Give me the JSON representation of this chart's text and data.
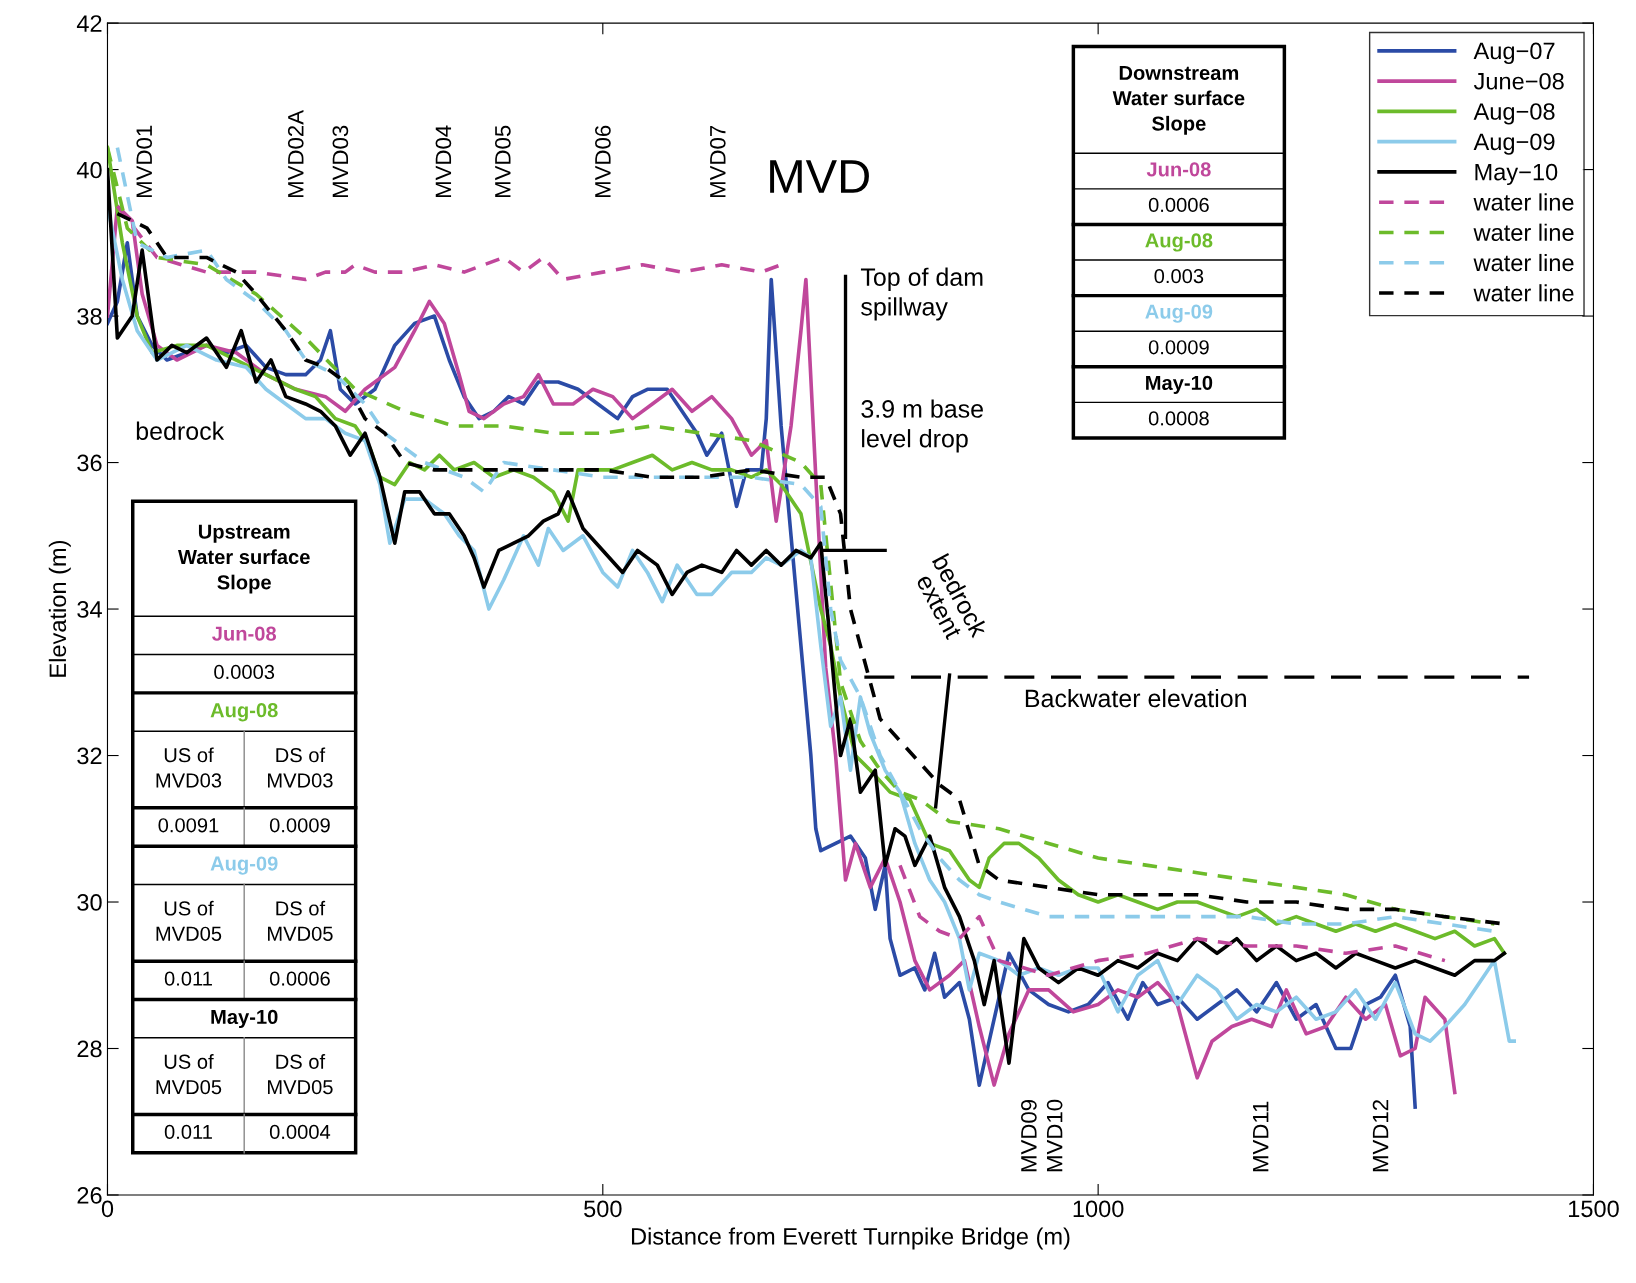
{
  "chart_data": {
    "type": "line",
    "xlabel": "Distance from Everett Turnpike Bridge (m)",
    "ylabel": "Elevation (m)",
    "xlim": [
      0,
      1500
    ],
    "ylim": [
      26,
      42
    ],
    "xticks": [
      0,
      500,
      1000,
      1500
    ],
    "yticks": [
      26,
      28,
      30,
      32,
      34,
      36,
      38,
      40,
      42
    ],
    "legend": "top right",
    "line_style": "solid",
    "series": [
      {
        "name": "Aug−07",
        "color": "#2b4ba6",
        "x": [
          0,
          10,
          20,
          30,
          45,
          60,
          80,
          100,
          120,
          140,
          160,
          180,
          200,
          215,
          225,
          235,
          250,
          270,
          290,
          310,
          330,
          345,
          360,
          375,
          390,
          405,
          420,
          435,
          455,
          475,
          495,
          515,
          530,
          545,
          565,
          580,
          595,
          605,
          620,
          635,
          645,
          660,
          665,
          670,
          680,
          690,
          700,
          710,
          715,
          720,
          735,
          750,
          765,
          775,
          785,
          790,
          800,
          815,
          825,
          835,
          845,
          860,
          870,
          880,
          895,
          910,
          930,
          950,
          970,
          990,
          1010,
          1030,
          1045,
          1060,
          1080,
          1100,
          1120,
          1140,
          1160,
          1180,
          1200,
          1220,
          1240,
          1255,
          1270,
          1285,
          1300,
          1315,
          1320
        ],
        "values": [
          37.9,
          38.2,
          39.0,
          38.0,
          37.6,
          37.4,
          37.5,
          37.6,
          37.5,
          37.6,
          37.3,
          37.2,
          37.2,
          37.4,
          37.8,
          37.0,
          36.8,
          37.0,
          37.6,
          37.9,
          38.0,
          37.4,
          36.9,
          36.6,
          36.7,
          36.9,
          36.8,
          37.1,
          37.1,
          37.0,
          36.8,
          36.6,
          36.9,
          37.0,
          37.0,
          36.7,
          36.4,
          36.1,
          36.4,
          35.4,
          35.9,
          35.9,
          36.6,
          38.5,
          36.5,
          35.0,
          33.5,
          32.0,
          31.0,
          30.7,
          30.8,
          30.9,
          30.6,
          29.9,
          30.5,
          29.5,
          29.0,
          29.1,
          28.8,
          29.3,
          28.7,
          28.9,
          28.4,
          27.5,
          28.4,
          29.3,
          28.8,
          28.6,
          28.5,
          28.6,
          28.9,
          28.4,
          28.9,
          28.6,
          28.7,
          28.4,
          28.6,
          28.8,
          28.5,
          28.9,
          28.4,
          28.6,
          28.0,
          28.0,
          28.6,
          28.7,
          29.0,
          28.3,
          27.2
        ]
      },
      {
        "name": "June−08",
        "color": "#c0479b",
        "x": [
          0,
          10,
          25,
          35,
          50,
          70,
          100,
          130,
          160,
          190,
          220,
          240,
          260,
          290,
          310,
          325,
          340,
          355,
          365,
          380,
          400,
          420,
          435,
          450,
          470,
          490,
          510,
          530,
          550,
          570,
          590,
          610,
          630,
          650,
          665,
          675,
          690,
          700,
          705,
          715,
          725,
          735,
          745,
          755,
          770,
          785,
          800,
          815,
          830,
          850,
          865,
          880,
          895,
          910,
          930,
          950,
          975,
          1000,
          1020,
          1040,
          1060,
          1080,
          1100,
          1115,
          1135,
          1155,
          1175,
          1190,
          1210,
          1230,
          1250,
          1270,
          1290,
          1305,
          1320,
          1330,
          1350,
          1360
        ],
        "values": [
          38.0,
          39.5,
          39.3,
          38.3,
          37.6,
          37.4,
          37.6,
          37.5,
          37.2,
          37.0,
          36.9,
          36.7,
          37.0,
          37.3,
          37.8,
          38.2,
          37.9,
          37.2,
          36.7,
          36.6,
          36.8,
          36.9,
          37.2,
          36.8,
          36.8,
          37.0,
          36.9,
          36.6,
          36.8,
          37.0,
          36.7,
          36.9,
          36.6,
          36.1,
          36.3,
          35.2,
          36.5,
          37.8,
          38.5,
          35.8,
          33.2,
          32.0,
          30.3,
          30.8,
          30.2,
          30.6,
          30.0,
          29.2,
          28.8,
          29.0,
          29.2,
          28.3,
          27.5,
          28.2,
          28.8,
          28.8,
          28.5,
          28.6,
          28.8,
          28.7,
          28.9,
          28.6,
          27.6,
          28.1,
          28.3,
          28.4,
          28.3,
          28.8,
          28.2,
          28.3,
          28.7,
          28.4,
          28.6,
          27.9,
          28.0,
          28.7,
          28.4,
          27.4
        ]
      },
      {
        "name": "Aug−08",
        "color": "#6cbb2a",
        "x": [
          0,
          15,
          30,
          45,
          70,
          100,
          130,
          160,
          190,
          210,
          230,
          250,
          265,
          275,
          290,
          305,
          320,
          335,
          350,
          370,
          390,
          410,
          430,
          450,
          465,
          475,
          490,
          510,
          530,
          550,
          570,
          590,
          610,
          630,
          650,
          665,
          680,
          700,
          720,
          730,
          740,
          755,
          770,
          790,
          810,
          830,
          850,
          870,
          880,
          890,
          905,
          920,
          940,
          960,
          980,
          1000,
          1020,
          1040,
          1060,
          1080,
          1100,
          1120,
          1140,
          1160,
          1180,
          1200,
          1220,
          1240,
          1260,
          1280,
          1300,
          1320,
          1340,
          1360,
          1380,
          1400,
          1410
        ],
        "values": [
          40.3,
          39.0,
          38.0,
          37.5,
          37.6,
          37.6,
          37.4,
          37.2,
          37.0,
          36.9,
          36.6,
          36.5,
          36.2,
          35.8,
          35.7,
          36.0,
          35.9,
          36.1,
          35.9,
          36.0,
          35.8,
          35.9,
          35.8,
          35.6,
          35.2,
          35.9,
          35.9,
          35.9,
          36.0,
          36.1,
          35.9,
          36.0,
          35.9,
          35.9,
          35.8,
          35.9,
          35.7,
          35.3,
          34.0,
          33.5,
          32.8,
          32.0,
          31.8,
          31.5,
          31.4,
          30.8,
          30.7,
          30.3,
          30.2,
          30.6,
          30.8,
          30.8,
          30.6,
          30.3,
          30.1,
          30.0,
          30.1,
          30.0,
          29.9,
          30.0,
          30.0,
          29.9,
          29.8,
          29.9,
          29.7,
          29.8,
          29.7,
          29.6,
          29.7,
          29.6,
          29.7,
          29.6,
          29.5,
          29.6,
          29.4,
          29.5,
          29.3
        ]
      },
      {
        "name": "Aug−09",
        "color": "#8ccbea",
        "x": [
          0,
          15,
          30,
          50,
          80,
          110,
          140,
          160,
          180,
          200,
          220,
          240,
          260,
          275,
          285,
          300,
          320,
          340,
          355,
          370,
          385,
          400,
          420,
          435,
          445,
          460,
          480,
          500,
          515,
          530,
          545,
          560,
          575,
          595,
          610,
          630,
          650,
          665,
          680,
          700,
          710,
          720,
          730,
          740,
          750,
          760,
          770,
          785,
          800,
          815,
          830,
          845,
          860,
          870,
          880,
          900,
          920,
          940,
          960,
          980,
          1000,
          1020,
          1040,
          1060,
          1080,
          1100,
          1120,
          1140,
          1160,
          1180,
          1200,
          1220,
          1240,
          1260,
          1280,
          1300,
          1320,
          1335,
          1350,
          1370,
          1390,
          1400,
          1415,
          1420
        ],
        "values": [
          39.5,
          38.5,
          37.8,
          37.4,
          37.6,
          37.4,
          37.3,
          37.0,
          36.8,
          36.6,
          36.6,
          36.4,
          36.3,
          35.7,
          34.9,
          35.5,
          35.5,
          35.3,
          35.0,
          34.8,
          34.0,
          34.4,
          35.0,
          34.6,
          35.1,
          34.8,
          35.0,
          34.5,
          34.3,
          34.8,
          34.5,
          34.1,
          34.6,
          34.2,
          34.2,
          34.5,
          34.5,
          34.7,
          34.6,
          34.8,
          34.7,
          33.5,
          32.4,
          32.8,
          31.8,
          32.8,
          32.3,
          31.8,
          31.5,
          30.8,
          30.3,
          30.0,
          29.5,
          28.8,
          29.3,
          29.2,
          29.0,
          29.1,
          29.0,
          29.1,
          29.1,
          28.5,
          29.0,
          29.2,
          28.6,
          29.0,
          28.8,
          28.4,
          28.6,
          28.5,
          28.7,
          28.4,
          28.5,
          28.8,
          28.4,
          28.9,
          28.2,
          28.1,
          28.3,
          28.6,
          29.0,
          29.2,
          28.1,
          28.1
        ]
      },
      {
        "name": "May−10",
        "color": "#000000",
        "x": [
          0,
          10,
          25,
          35,
          50,
          65,
          80,
          100,
          120,
          135,
          150,
          165,
          180,
          200,
          215,
          230,
          245,
          260,
          275,
          290,
          300,
          315,
          330,
          345,
          360,
          370,
          380,
          395,
          410,
          425,
          440,
          455,
          465,
          480,
          500,
          520,
          535,
          555,
          570,
          585,
          600,
          620,
          635,
          650,
          665,
          680,
          695,
          710,
          720,
          730,
          740,
          750,
          760,
          775,
          785,
          795,
          805,
          815,
          830,
          845,
          860,
          875,
          885,
          895,
          910,
          925,
          940,
          960,
          980,
          1000,
          1020,
          1040,
          1060,
          1080,
          1100,
          1120,
          1140,
          1160,
          1180,
          1200,
          1220,
          1240,
          1260,
          1280,
          1300,
          1320,
          1340,
          1360,
          1380,
          1400,
          1410
        ],
        "values": [
          40.0,
          37.7,
          38.0,
          38.9,
          37.4,
          37.6,
          37.5,
          37.7,
          37.3,
          37.8,
          37.1,
          37.4,
          36.9,
          36.8,
          36.7,
          36.5,
          36.1,
          36.4,
          35.8,
          34.9,
          35.6,
          35.6,
          35.3,
          35.3,
          35.0,
          34.7,
          34.3,
          34.8,
          34.9,
          35.0,
          35.2,
          35.3,
          35.6,
          35.1,
          34.8,
          34.5,
          34.8,
          34.6,
          34.2,
          34.5,
          34.6,
          34.5,
          34.8,
          34.6,
          34.8,
          34.6,
          34.8,
          34.7,
          34.9,
          33.5,
          32.0,
          32.5,
          31.5,
          31.8,
          30.5,
          31.0,
          30.9,
          30.5,
          30.9,
          30.2,
          29.8,
          29.2,
          28.6,
          29.2,
          27.8,
          29.5,
          29.1,
          28.9,
          29.1,
          29.0,
          29.2,
          29.1,
          29.3,
          29.2,
          29.5,
          29.3,
          29.5,
          29.2,
          29.4,
          29.2,
          29.3,
          29.1,
          29.3,
          29.2,
          29.1,
          29.2,
          29.1,
          29.0,
          29.2,
          29.2,
          29.3
        ]
      },
      {
        "name": "water line",
        "color": "#c0479b",
        "line_style": "dashed",
        "x": [
          10,
          50,
          100,
          150,
          200,
          220,
          240,
          250,
          270,
          300,
          330,
          360,
          400,
          420,
          440,
          460,
          500,
          540,
          580,
          620,
          660,
          680,
          740,
          800,
          820,
          840,
          860,
          880,
          900,
          950,
          1000,
          1050,
          1100,
          1150,
          1200,
          1250,
          1300,
          1350
        ],
        "values": [
          39.5,
          38.8,
          38.6,
          38.6,
          38.5,
          38.6,
          38.6,
          38.7,
          38.6,
          38.6,
          38.7,
          38.6,
          38.8,
          38.6,
          38.8,
          38.5,
          38.6,
          38.7,
          38.6,
          38.7,
          38.6,
          38.7,
          null,
          30.5,
          29.8,
          29.6,
          29.5,
          29.8,
          29.2,
          29.0,
          29.2,
          29.3,
          29.5,
          29.4,
          29.4,
          29.3,
          29.4,
          29.2
        ]
      },
      {
        "name": "water line",
        "color": "#6cbb2a",
        "line_style": "dashed",
        "x": [
          0,
          20,
          50,
          100,
          150,
          200,
          250,
          300,
          350,
          400,
          450,
          500,
          550,
          600,
          650,
          700,
          720,
          740,
          760,
          780,
          800,
          820,
          850,
          900,
          950,
          1000,
          1050,
          1100,
          1150,
          1200,
          1250,
          1300,
          1350,
          1400
        ],
        "values": [
          40.3,
          39.2,
          38.8,
          38.7,
          38.3,
          37.7,
          37.0,
          36.7,
          36.5,
          36.5,
          36.4,
          36.4,
          36.5,
          36.4,
          36.3,
          36.0,
          35.7,
          33.0,
          32.2,
          31.8,
          31.5,
          31.4,
          31.1,
          31.0,
          30.8,
          30.6,
          30.5,
          30.4,
          30.3,
          30.2,
          30.1,
          29.9,
          29.8,
          29.7
        ]
      },
      {
        "name": "water line",
        "color": "#8ccbea",
        "line_style": "dashed",
        "x": [
          10,
          30,
          60,
          100,
          120,
          150,
          180,
          200,
          230,
          260,
          280,
          300,
          320,
          340,
          360,
          380,
          400,
          450,
          500,
          550,
          600,
          650,
          700,
          720,
          730,
          740,
          760,
          780,
          800,
          820,
          840,
          860,
          880,
          900,
          950,
          1000,
          1050,
          1100,
          1150,
          1200,
          1250,
          1300,
          1350,
          1400
        ],
        "values": [
          40.3,
          39.0,
          38.8,
          38.9,
          38.5,
          38.2,
          37.8,
          37.4,
          37.2,
          36.8,
          36.4,
          36.2,
          36.0,
          35.9,
          35.8,
          35.6,
          36.0,
          35.9,
          35.8,
          35.8,
          35.8,
          35.8,
          35.7,
          35.4,
          34.0,
          33.3,
          32.8,
          32.0,
          31.5,
          31.0,
          30.6,
          30.3,
          30.1,
          30.0,
          29.8,
          29.8,
          29.8,
          29.8,
          29.8,
          29.7,
          29.7,
          29.8,
          29.7,
          29.6
        ]
      },
      {
        "name": "water line",
        "color": "#000000",
        "line_style": "dashed",
        "x": [
          10,
          40,
          60,
          100,
          130,
          150,
          180,
          200,
          220,
          240,
          260,
          280,
          300,
          330,
          400,
          450,
          500,
          550,
          600,
          650,
          700,
          725,
          740,
          750,
          760,
          780,
          800,
          820,
          840,
          860,
          880,
          900,
          950,
          1000,
          1050,
          1100,
          1150,
          1200,
          1250,
          1300,
          1350,
          1410
        ],
        "values": [
          39.4,
          39.2,
          38.8,
          38.8,
          38.6,
          38.3,
          37.8,
          37.4,
          37.3,
          37.1,
          36.6,
          36.4,
          36.0,
          35.9,
          35.9,
          35.9,
          35.9,
          35.8,
          35.8,
          35.9,
          35.8,
          35.8,
          35.3,
          34.0,
          33.5,
          32.5,
          32.2,
          31.9,
          31.6,
          31.4,
          30.5,
          30.3,
          30.2,
          30.1,
          30.1,
          30.1,
          30.0,
          30.0,
          29.9,
          29.9,
          29.8,
          29.7
        ]
      },
      {
        "color": "#000000",
        "x": [
          745,
          745
        ],
        "values": [
          38.54,
          34.98
        ]
      },
      {
        "color": "#000000",
        "x": [
          723,
          785
        ],
        "values": [
          34.8,
          34.8
        ]
      },
      {
        "color": "#000000",
        "x": [
          850,
          836
        ],
        "values": [
          33.1,
          31.3
        ]
      },
      {
        "color": "#000000",
        "line_style": "dashed",
        "x": [
          764,
          1435
        ],
        "values": [
          33.07,
          33.07
        ]
      }
    ],
    "annotations": [
      "MVD01",
      "MVD02A",
      "MVD03",
      "MVD04",
      "MVD05",
      "MVD06",
      "MVD07",
      "MVD09",
      "MVD10",
      "MVD11",
      "MVD12",
      "MVD",
      "Top of dam\nspillway",
      "3.9 m base\nlevel drop",
      "bedrock",
      "bedrock\nextent",
      "Backwater elevation",
      "Downstream\nWater surface\nSlope",
      "Jun-08",
      "0.0006",
      "Aug-08",
      "0.003",
      "Aug-09",
      "0.0009",
      "May-10",
      "0.0008",
      "Upstream\nWater surface\nSlope",
      "Jun-08",
      "0.0003",
      "Aug-08",
      "US of\nMVD03",
      "DS of\nMVD03",
      "0.0091",
      "0.0009",
      "Aug-09",
      "US of\nMVD05",
      "DS of\nMVD05",
      "0.011",
      "0.0006",
      "May-10",
      "US of\nMVD05",
      "DS of\nMVD05",
      "0.011",
      "0.0004"
    ]
  }
}
